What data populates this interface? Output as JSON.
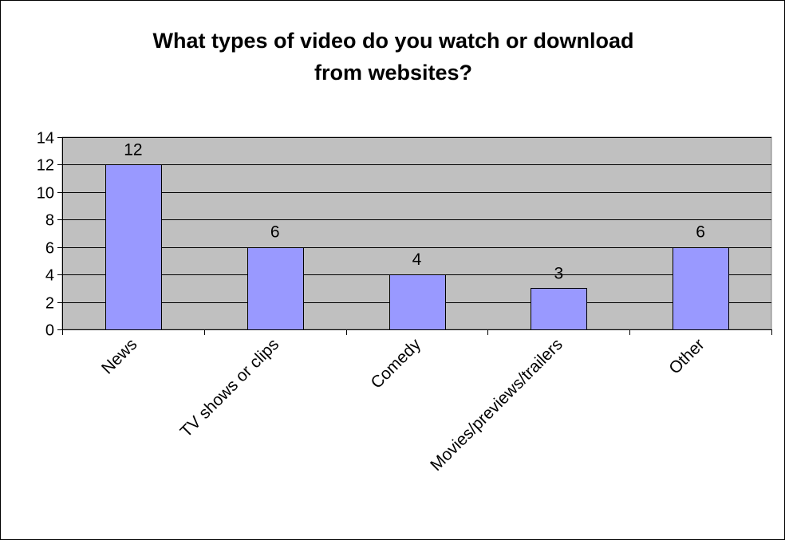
{
  "chart_data": {
    "type": "bar",
    "title": [
      "What types of video do you watch or download",
      "from websites?"
    ],
    "categories": [
      "News",
      "TV shows or clips",
      "Comedy",
      "Movies/previews/trailers",
      "Other"
    ],
    "values": [
      12,
      6,
      4,
      3,
      6
    ],
    "data_labels": [
      "12",
      "6",
      "4",
      "3",
      "6"
    ],
    "ylim": [
      0,
      14
    ],
    "yticks": [
      0,
      2,
      4,
      6,
      8,
      10,
      12,
      14
    ],
    "grid": true,
    "legend": "none"
  },
  "colors": {
    "bar_fill": "#9999ff",
    "plot_background": "#c0c0c0",
    "gridline": "#000000",
    "text": "#000000"
  }
}
